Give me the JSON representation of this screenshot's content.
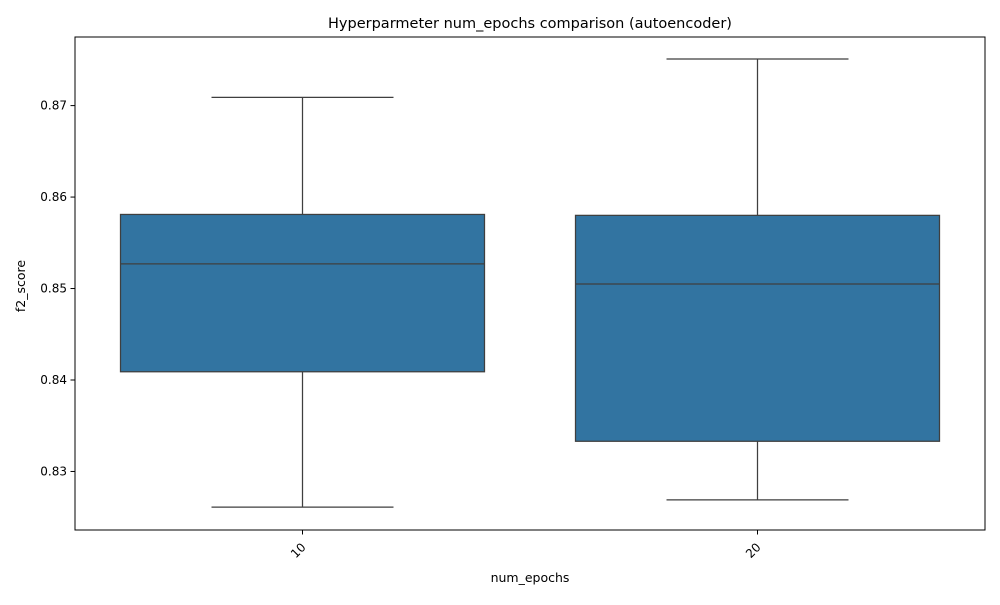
{
  "chart_data": {
    "type": "box",
    "title": "Hyperparmeter num_epochs comparison (autoencoder)",
    "xlabel": "num_epochs",
    "ylabel": "f2_score",
    "ylim": [
      0.8236,
      0.8775
    ],
    "yticks": [
      0.83,
      0.84,
      0.85,
      0.86,
      0.87
    ],
    "ytick_labels": [
      "0.83",
      "0.84",
      "0.85",
      "0.86",
      "0.87"
    ],
    "categories": [
      "10",
      "20"
    ],
    "xtick_rotation": 45,
    "grid": false,
    "box_color": "#3274a1",
    "line_color": "#3f3f3f",
    "boxes": [
      {
        "category": "10",
        "whisker_low": 0.8261,
        "q1": 0.8409,
        "median": 0.8527,
        "q3": 0.8581,
        "whisker_high": 0.8709
      },
      {
        "category": "20",
        "whisker_low": 0.8269,
        "q1": 0.8333,
        "median": 0.8505,
        "q3": 0.858,
        "whisker_high": 0.8751
      }
    ]
  }
}
